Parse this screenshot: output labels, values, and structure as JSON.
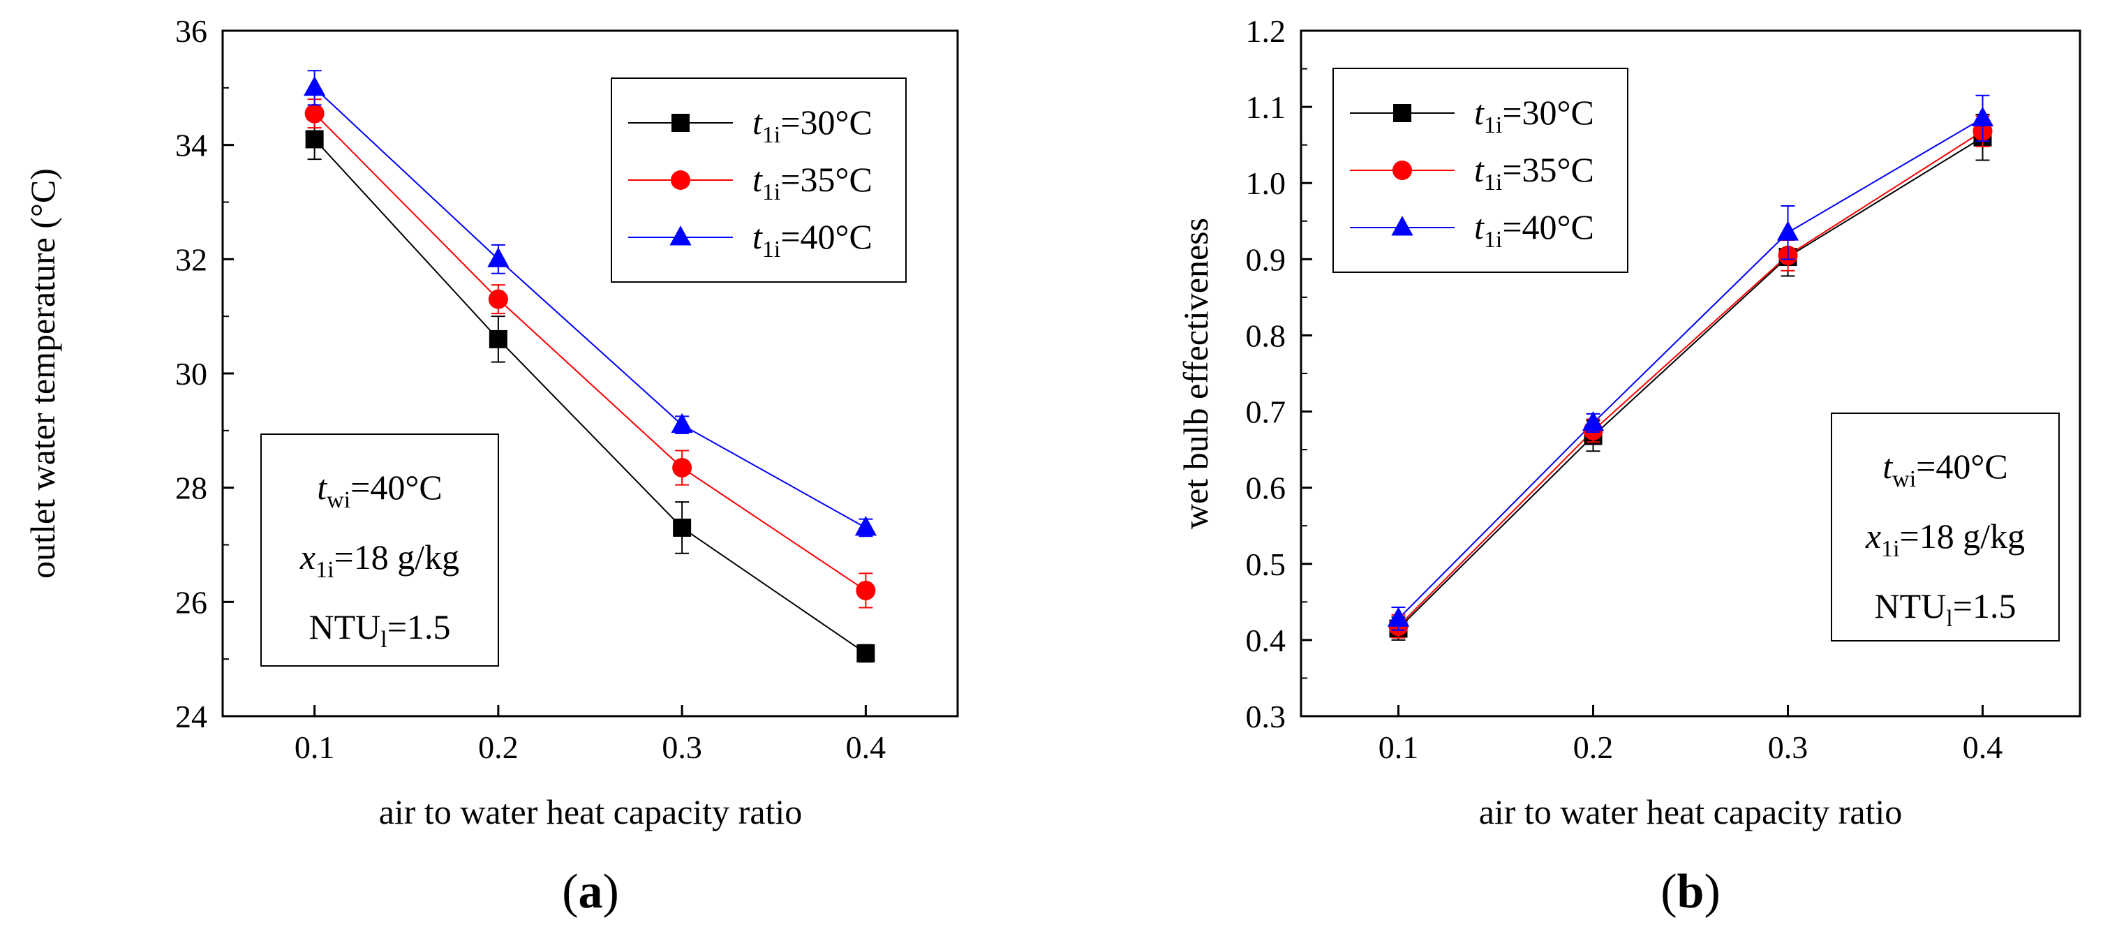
{
  "chart_data": [
    {
      "type": "line",
      "panel_label": "(a)",
      "panel_letter": "a",
      "xlabel": "air to water heat capacity ratio",
      "ylabel": "outlet water temperature (°C)",
      "xlim": [
        0.05,
        0.45
      ],
      "ylim": [
        24,
        36
      ],
      "x": [
        0.1,
        0.2,
        0.3,
        0.4
      ],
      "x_tick_labels": [
        "0.1",
        "0.2",
        "0.3",
        "0.4"
      ],
      "y_ticks": [
        24,
        26,
        28,
        30,
        32,
        34,
        36
      ],
      "y_tick_labels": [
        "24",
        "26",
        "28",
        "30",
        "32",
        "34",
        "36"
      ],
      "legend_position": "top-right",
      "series": [
        {
          "name": "t1i=30°C",
          "label_main": "t",
          "label_sub": "1i",
          "label_rest": "=30°C",
          "marker": "square",
          "color": "#000000",
          "values": [
            34.1,
            30.6,
            27.3,
            25.1
          ],
          "errors": [
            0.35,
            0.4,
            0.45,
            0.15
          ]
        },
        {
          "name": "t1i=35°C",
          "label_main": "t",
          "label_sub": "1i",
          "label_rest": "=35°C",
          "marker": "circle",
          "color": "#ff0000",
          "values": [
            34.55,
            31.3,
            28.35,
            26.2
          ],
          "errors": [
            0.25,
            0.25,
            0.3,
            0.3
          ]
        },
        {
          "name": "t1i=40°C",
          "label_main": "t",
          "label_sub": "1i",
          "label_rest": "=40°C",
          "marker": "triangle",
          "color": "#0000ff",
          "values": [
            35.0,
            32.0,
            29.1,
            27.3
          ],
          "errors": [
            0.3,
            0.25,
            0.15,
            0.15
          ]
        }
      ],
      "annotation": {
        "line1_main": "t",
        "line1_sub": "wi",
        "line1_rest": "=40°C",
        "line2_main": "x",
        "line2_sub": "1i",
        "line2_rest": "=18 g/kg",
        "line3_main": "NTU",
        "line3_sub": "l",
        "line3_rest": "=1.5"
      }
    },
    {
      "type": "line",
      "panel_label": "(b)",
      "panel_letter": "b",
      "xlabel": "air to water heat capacity ratio",
      "ylabel": "wet bulb effectiveness",
      "xlim": [
        0.05,
        0.45
      ],
      "ylim": [
        0.3,
        1.2
      ],
      "x": [
        0.1,
        0.2,
        0.3,
        0.4
      ],
      "x_tick_labels": [
        "0.1",
        "0.2",
        "0.3",
        "0.4"
      ],
      "y_ticks": [
        0.3,
        0.4,
        0.5,
        0.6,
        0.7,
        0.8,
        0.9,
        1.0,
        1.1,
        1.2
      ],
      "y_tick_labels": [
        "0.3",
        "0.4",
        "0.5",
        "0.6",
        "0.7",
        "0.8",
        "0.9",
        "1.0",
        "1.1",
        "1.2"
      ],
      "legend_position": "top-left",
      "series": [
        {
          "name": "t1i=30°C",
          "label_main": "t",
          "label_sub": "1i",
          "label_rest": "=30°C",
          "marker": "square",
          "color": "#000000",
          "values": [
            0.415,
            0.668,
            0.903,
            1.06
          ],
          "errors": [
            0.015,
            0.02,
            0.025,
            0.03
          ]
        },
        {
          "name": "t1i=35°C",
          "label_main": "t",
          "label_sub": "1i",
          "label_rest": "=35°C",
          "marker": "circle",
          "color": "#ff0000",
          "values": [
            0.418,
            0.675,
            0.905,
            1.068
          ],
          "errors": [
            0.015,
            0.015,
            0.02,
            0.02
          ]
        },
        {
          "name": "t1i=40°C",
          "label_main": "t",
          "label_sub": "1i",
          "label_rest": "=40°C",
          "marker": "triangle",
          "color": "#0000ff",
          "values": [
            0.428,
            0.685,
            0.935,
            1.085
          ],
          "errors": [
            0.015,
            0.012,
            0.035,
            0.03
          ]
        }
      ],
      "annotation": {
        "line1_main": "t",
        "line1_sub": "wi",
        "line1_rest": "=40°C",
        "line2_main": "x",
        "line2_sub": "1i",
        "line2_rest": "=18 g/kg",
        "line3_main": "NTU",
        "line3_sub": "l",
        "line3_rest": "=1.5"
      }
    }
  ]
}
